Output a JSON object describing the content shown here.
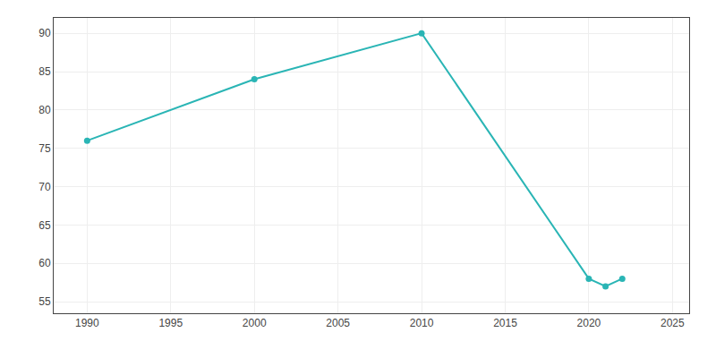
{
  "chart_data": {
    "type": "line",
    "x": [
      1990,
      2000,
      2010,
      2020,
      2021,
      2022
    ],
    "values": [
      76,
      84,
      90,
      58,
      57,
      58
    ],
    "color": "#2ab5b5",
    "marker": "circle",
    "xlim": [
      1988,
      2026
    ],
    "ylim": [
      53.5,
      92
    ],
    "xticks": [
      1990,
      1995,
      2000,
      2005,
      2010,
      2015,
      2020,
      2025
    ],
    "yticks": [
      55,
      60,
      65,
      70,
      75,
      80,
      85,
      90
    ],
    "grid": true
  }
}
